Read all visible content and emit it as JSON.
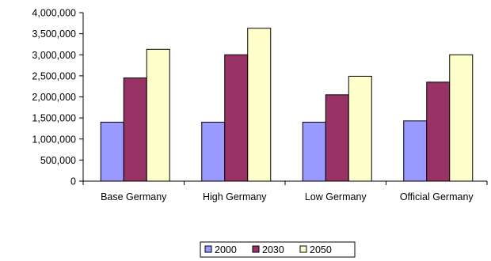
{
  "chart_data": {
    "type": "bar",
    "categories": [
      "Base Germany",
      "High Germany",
      "Low Germany",
      "Official Germany"
    ],
    "series": [
      {
        "name": "2000",
        "values": [
          1400000,
          1400000,
          1400000,
          1430000
        ],
        "color": "#9999ff"
      },
      {
        "name": "2030",
        "values": [
          2450000,
          3000000,
          2050000,
          2350000
        ],
        "color": "#993366"
      },
      {
        "name": "2050",
        "values": [
          3130000,
          3630000,
          2490000,
          3000000
        ],
        "color": "#ffffcc"
      }
    ],
    "ylim": [
      0,
      4000000
    ],
    "yticks": [
      0,
      500000,
      1000000,
      1500000,
      2000000,
      2500000,
      3000000,
      3500000,
      4000000
    ],
    "ytick_labels": [
      "0",
      "500,000",
      "1,000,000",
      "1,500,000",
      "2,000,000",
      "2,500,000",
      "3,000,000",
      "3,500,000",
      "4,000,000"
    ],
    "grid": false,
    "legend_position": "bottom"
  }
}
